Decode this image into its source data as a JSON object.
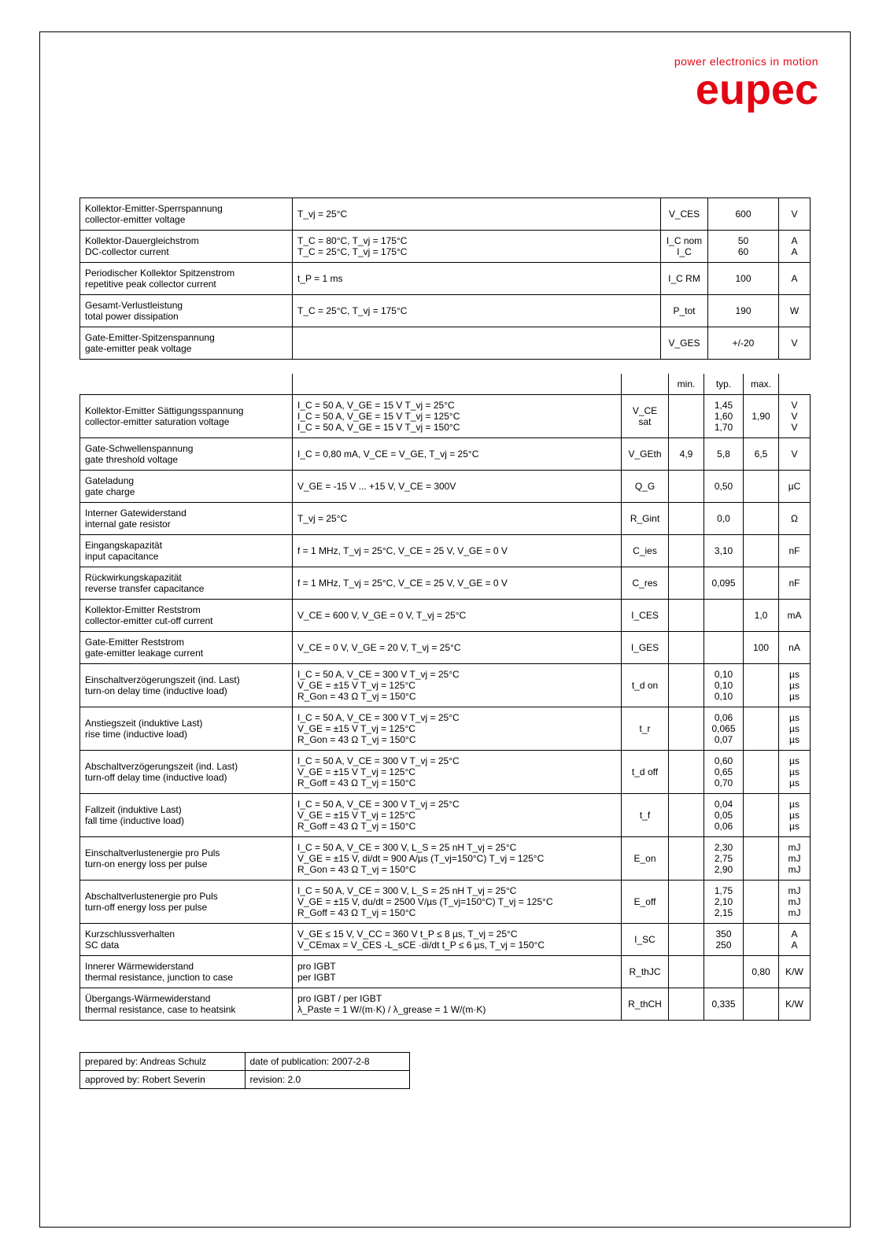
{
  "brand": {
    "tagline": "power electronics in motion",
    "name": "eupec",
    "color": "#e30613"
  },
  "table1": {
    "rows": [
      {
        "de": "Kollektor-Emitter-Sperrspannung",
        "en": "collector-emitter voltage",
        "cond": "T_vj = 25°C",
        "sym": "V_CES",
        "val": "600",
        "unit": "V"
      },
      {
        "de": "Kollektor-Dauergleichstrom",
        "en": "DC-collector current",
        "cond": "T_C = 80°C, T_vj = 175°C\nT_C = 25°C, T_vj = 175°C",
        "sym": "I_C nom\nI_C",
        "val": "50\n60",
        "unit": "A\nA"
      },
      {
        "de": "Periodischer Kollektor Spitzenstrom",
        "en": "repetitive peak collector current",
        "cond": "t_P = 1 ms",
        "sym": "I_C RM",
        "val": "100",
        "unit": "A"
      },
      {
        "de": "Gesamt-Verlustleistung",
        "en": "total power dissipation",
        "cond": "T_C = 25°C, T_vj = 175°C",
        "sym": "P_tot",
        "val": "190",
        "unit": "W"
      },
      {
        "de": "Gate-Emitter-Spitzenspannung",
        "en": "gate-emitter peak voltage",
        "cond": "",
        "sym": "V_GES",
        "val": "+/-20",
        "unit": "V"
      }
    ]
  },
  "table2": {
    "header": {
      "min": "min.",
      "typ": "typ.",
      "max": "max."
    },
    "rows": [
      {
        "de": "Kollektor-Emitter Sättigungsspannung",
        "en": "collector-emitter saturation voltage",
        "cond": "I_C = 50 A, V_GE = 15 V                      T_vj = 25°C\nI_C = 50 A, V_GE = 15 V                      T_vj = 125°C\nI_C = 50 A, V_GE = 15 V                      T_vj = 150°C",
        "sym": "V_CE sat",
        "min": "",
        "typ": "1,45\n1,60\n1,70",
        "max": "1,90",
        "unit": "V\nV\nV"
      },
      {
        "de": "Gate-Schwellenspannung",
        "en": "gate threshold voltage",
        "cond": "I_C = 0,80 mA, V_CE = V_GE, T_vj = 25°C",
        "sym": "V_GEth",
        "min": "4,9",
        "typ": "5,8",
        "max": "6,5",
        "unit": "V"
      },
      {
        "de": "Gateladung",
        "en": "gate charge",
        "cond": "V_GE = -15 V ... +15 V, V_CE = 300V",
        "sym": "Q_G",
        "min": "",
        "typ": "0,50",
        "max": "",
        "unit": "µC"
      },
      {
        "de": "Interner Gatewiderstand",
        "en": "internal gate resistor",
        "cond": "T_vj = 25°C",
        "sym": "R_Gint",
        "min": "",
        "typ": "0,0",
        "max": "",
        "unit": "Ω"
      },
      {
        "de": "Eingangskapazität",
        "en": "input capacitance",
        "cond": "f = 1 MHz, T_vj = 25°C, V_CE = 25 V, V_GE = 0 V",
        "sym": "C_ies",
        "min": "",
        "typ": "3,10",
        "max": "",
        "unit": "nF"
      },
      {
        "de": "Rückwirkungskapazität",
        "en": "reverse transfer capacitance",
        "cond": "f = 1 MHz, T_vj = 25°C, V_CE = 25 V, V_GE = 0 V",
        "sym": "C_res",
        "min": "",
        "typ": "0,095",
        "max": "",
        "unit": "nF"
      },
      {
        "de": "Kollektor-Emitter Reststrom",
        "en": "collector-emitter cut-off current",
        "cond": "V_CE = 600 V, V_GE = 0 V, T_vj = 25°C",
        "sym": "I_CES",
        "min": "",
        "typ": "",
        "max": "1,0",
        "unit": "mA"
      },
      {
        "de": "Gate-Emitter Reststrom",
        "en": "gate-emitter leakage current",
        "cond": "V_CE = 0 V, V_GE = 20 V, T_vj = 25°C",
        "sym": "I_GES",
        "min": "",
        "typ": "",
        "max": "100",
        "unit": "nA"
      },
      {
        "de": "Einschaltverzögerungszeit (ind. Last)",
        "en": "turn-on delay time (inductive load)",
        "cond": "I_C = 50 A, V_CE = 300 V                      T_vj = 25°C\nV_GE = ±15 V                                       T_vj = 125°C\nR_Gon = 43 Ω                                       T_vj = 150°C",
        "sym": "t_d on",
        "min": "",
        "typ": "0,10\n0,10\n0,10",
        "max": "",
        "unit": "µs\nµs\nµs"
      },
      {
        "de": "Anstiegszeit (induktive Last)",
        "en": "rise time (inductive load)",
        "cond": "I_C = 50 A, V_CE = 300 V                      T_vj = 25°C\nV_GE = ±15 V                                       T_vj = 125°C\nR_Gon = 43 Ω                                       T_vj = 150°C",
        "sym": "t_r",
        "min": "",
        "typ": "0,06\n0,065\n0,07",
        "max": "",
        "unit": "µs\nµs\nµs"
      },
      {
        "de": "Abschaltverzögerungszeit (ind. Last)",
        "en": "turn-off delay time (inductive load)",
        "cond": "I_C = 50 A, V_CE = 300 V                      T_vj = 25°C\nV_GE = ±15 V                                       T_vj = 125°C\nR_Goff = 43 Ω                                      T_vj = 150°C",
        "sym": "t_d off",
        "min": "",
        "typ": "0,60\n0,65\n0,70",
        "max": "",
        "unit": "µs\nµs\nµs"
      },
      {
        "de": "Fallzeit (induktive Last)",
        "en": "fall time (inductive load)",
        "cond": "I_C = 50 A, V_CE = 300 V                      T_vj = 25°C\nV_GE = ±15 V                                       T_vj = 125°C\nR_Goff = 43 Ω                                      T_vj = 150°C",
        "sym": "t_f",
        "min": "",
        "typ": "0,04\n0,05\n0,06",
        "max": "",
        "unit": "µs\nµs\nµs"
      },
      {
        "de": "Einschaltverlustenergie pro Puls",
        "en": "turn-on energy loss per pulse",
        "cond": "I_C = 50 A, V_CE = 300 V, L_S = 25 nH           T_vj = 25°C\nV_GE = ±15 V, di/dt = 900 A/µs (T_vj=150°C)   T_vj = 125°C\nR_Gon = 43 Ω                                             T_vj = 150°C",
        "sym": "E_on",
        "min": "",
        "typ": "2,30\n2,75\n2,90",
        "max": "",
        "unit": "mJ\nmJ\nmJ"
      },
      {
        "de": "Abschaltverlustenergie pro Puls",
        "en": "turn-off energy loss per pulse",
        "cond": "I_C = 50 A, V_CE = 300 V, L_S = 25 nH           T_vj = 25°C\nV_GE = ±15 V, du/dt = 2500 V/µs (T_vj=150°C) T_vj = 125°C\nR_Goff = 43 Ω                                            T_vj = 150°C",
        "sym": "E_off",
        "min": "",
        "typ": "1,75\n2,10\n2,15",
        "max": "",
        "unit": "mJ\nmJ\nmJ"
      },
      {
        "de": "Kurzschlussverhalten",
        "en": "SC data",
        "cond": "V_GE ≤ 15 V, V_CC = 360 V              t_P ≤ 8 µs, T_vj = 25°C\nV_CEmax = V_CES -L_sCE ·di/dt          t_P ≤ 6 µs, T_vj = 150°C",
        "sym": "I_SC",
        "min": "",
        "typ": "350\n250",
        "max": "",
        "unit": "A\nA"
      },
      {
        "de": "Innerer Wärmewiderstand",
        "en": "thermal resistance, junction to case",
        "cond": "pro IGBT\nper IGBT",
        "sym": "R_thJC",
        "min": "",
        "typ": "",
        "max": "0,80",
        "unit": "K/W"
      },
      {
        "de": "Übergangs-Wärmewiderstand",
        "en": "thermal resistance, case to heatsink",
        "cond": "pro IGBT / per IGBT\nλ_Paste = 1 W/(m·K)   /    λ_grease = 1 W/(m·K)",
        "sym": "R_thCH",
        "min": "",
        "typ": "0,335",
        "max": "",
        "unit": "K/W"
      }
    ]
  },
  "footer": {
    "prepared_label": "prepared by: Andreas Schulz",
    "date_label": "date of publication: 2007-2-8",
    "approved_label": "approved by: Robert Severin",
    "rev_label": "revision: 2.0"
  }
}
